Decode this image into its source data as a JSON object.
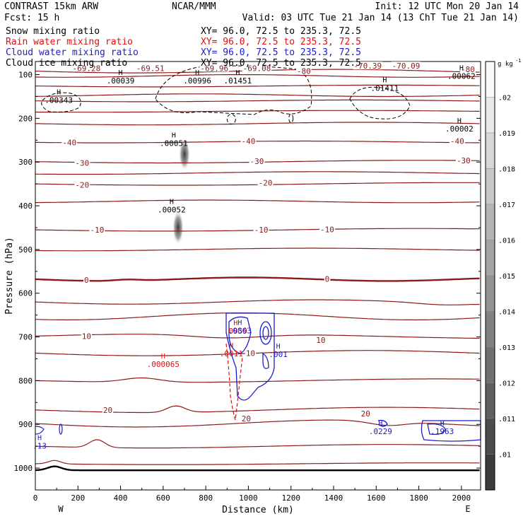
{
  "header": {
    "left1": "CONTRAST 15km ARW",
    "center1": "NCAR/MMM",
    "right1": "Init: 12 UTC Mon 20 Jan 14",
    "left2": "Fcst:   15 h",
    "right2": "Valid: 03 UTC Tue 21 Jan 14 (13 ChT Tue 21 Jan 14)"
  },
  "colors": {
    "black": "#000000",
    "temp": "#8b1a1a",
    "rain": "#e01010",
    "cloud": "#1c1ccc",
    "ice": "#000000"
  },
  "legend_rows": [
    {
      "field": "Snow mixing ratio",
      "xy": "XY=   96.0, 72.5 to 235.3, 72.5",
      "color": "#000000"
    },
    {
      "field": "Rain water mixing ratio",
      "xy": "XY=   96.0, 72.5 to 235.3, 72.5",
      "color": "#e01010"
    },
    {
      "field": "Cloud water mixing ratio",
      "xy": "XY=  96.0, 72.5 to 235.3, 72.5",
      "color": "#1c1ccc"
    },
    {
      "field": "Cloud ice mixing ratio",
      "xy": "XY=   96.0, 72.5 to 235.3, 72.5",
      "color": "#000000"
    }
  ],
  "chart_data": {
    "type": "cross-section contour",
    "xlabel": "Distance (km)",
    "ylabel": "Pressure (hPa)",
    "xlim": [
      0,
      2090
    ],
    "ylim": [
      1050,
      70
    ],
    "x_ticks": [
      0,
      200,
      400,
      600,
      800,
      1000,
      1200,
      1400,
      1600,
      1800,
      2000
    ],
    "y_ticks": [
      100,
      200,
      300,
      400,
      500,
      600,
      700,
      800,
      900,
      1000
    ],
    "x_end_labels": {
      "left": "W",
      "right": "E"
    },
    "colorbar": {
      "unit": "g kg",
      "exponent": "-1",
      "levels": [
        ".01",
        ".011",
        ".012",
        ".013",
        ".014",
        ".015",
        ".016",
        ".017",
        ".018",
        ".019",
        ".02"
      ]
    },
    "temperature_isotherm_labels": [
      {
        "label": "-69.28",
        "x": 240,
        "p": 85
      },
      {
        "label": "-69.51",
        "x": 540,
        "p": 85
      },
      {
        "label": "-69.96",
        "x": 840,
        "p": 85
      },
      {
        "label": "-69.08",
        "x": 1040,
        "p": 85
      },
      {
        "label": "-70.39",
        "x": 1560,
        "p": 80
      },
      {
        "label": "-70.09",
        "x": 1740,
        "p": 80
      },
      {
        "label": "-80",
        "x": 1260,
        "p": 92
      },
      {
        "label": "-80",
        "x": 2030,
        "p": 88
      },
      {
        "label": "-40",
        "x": 160,
        "p": 255
      },
      {
        "label": "-40",
        "x": 1000,
        "p": 252
      },
      {
        "label": "-40",
        "x": 1980,
        "p": 252
      },
      {
        "label": "-30",
        "x": 220,
        "p": 302
      },
      {
        "label": "-30",
        "x": 1040,
        "p": 298
      },
      {
        "label": "-30",
        "x": 2010,
        "p": 296
      },
      {
        "label": "-20",
        "x": 220,
        "p": 352
      },
      {
        "label": "-20",
        "x": 1080,
        "p": 347
      },
      {
        "label": "-10",
        "x": 290,
        "p": 455
      },
      {
        "label": "-10",
        "x": 1060,
        "p": 455
      },
      {
        "label": "-10",
        "x": 1370,
        "p": 454
      },
      {
        "label": "0",
        "x": 240,
        "p": 570
      },
      {
        "label": "0",
        "x": 1370,
        "p": 567
      },
      {
        "label": "10",
        "x": 240,
        "p": 698
      },
      {
        "label": "10",
        "x": 1340,
        "p": 707
      },
      {
        "label": "10",
        "x": 1010,
        "p": 737
      },
      {
        "label": "20",
        "x": 340,
        "p": 867
      },
      {
        "label": "20",
        "x": 990,
        "p": 887
      },
      {
        "label": "20",
        "x": 1550,
        "p": 875
      }
    ],
    "extrema": [
      {
        "field": "snow",
        "label": ".00343",
        "x": 110,
        "p": 165
      },
      {
        "field": "snow",
        "label": ".00039",
        "x": 400,
        "p": 120
      },
      {
        "field": "snow",
        "label": ".00996",
        "x": 760,
        "p": 120
      },
      {
        "field": "snow",
        "label": ".01451",
        "x": 950,
        "p": 120
      },
      {
        "field": "snow",
        "label": ".01411",
        "x": 1640,
        "p": 137
      },
      {
        "field": "snow",
        "label": ".00062",
        "x": 2000,
        "p": 110
      },
      {
        "field": "snow",
        "label": ".00002",
        "x": 1990,
        "p": 230
      },
      {
        "field": "snow",
        "label": ".00051",
        "x": 650,
        "p": 263
      },
      {
        "field": "snow",
        "label": ".00052",
        "x": 640,
        "p": 415
      },
      {
        "field": "rain",
        "label": ".000065",
        "x": 600,
        "p": 769
      },
      {
        "field": "rain",
        "label": ".0959",
        "x": 940,
        "p": 693
      },
      {
        "field": "rain",
        "label": ".0011",
        "x": 920,
        "p": 744
      },
      {
        "field": "cloud",
        "label": ".0863",
        "x": 960,
        "p": 692
      },
      {
        "field": "cloud",
        "label": ".001",
        "x": 1140,
        "p": 746
      },
      {
        "field": "cloud",
        "label": ".0229",
        "x": 1620,
        "p": 922
      },
      {
        "field": "cloud",
        "label": ".1963",
        "x": 1910,
        "p": 922
      },
      {
        "field": "cloud",
        "label": ".13",
        "x": 20,
        "p": 955
      }
    ],
    "snow_shading": [
      {
        "x": 700,
        "p_top": 245,
        "p_bottom": 320,
        "max": ".02"
      },
      {
        "x": 670,
        "p_top": 410,
        "p_bottom": 490,
        "max": ".015"
      }
    ],
    "freezing_level_hpa": 570,
    "surface_hpa": 1005
  }
}
